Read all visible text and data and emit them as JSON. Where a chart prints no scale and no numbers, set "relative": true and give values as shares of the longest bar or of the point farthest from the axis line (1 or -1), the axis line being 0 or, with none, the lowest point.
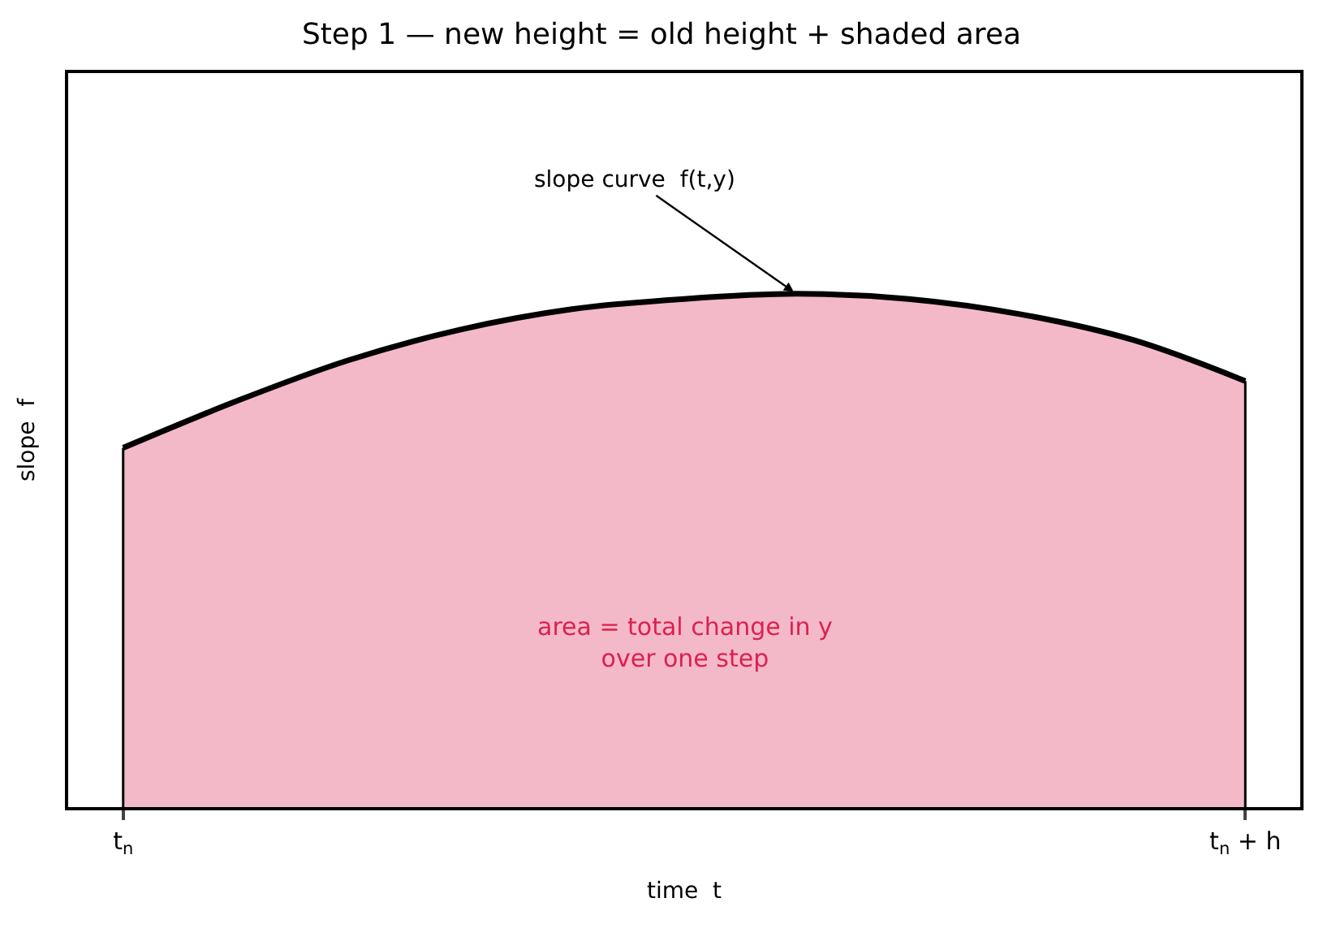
{
  "chart_data": {
    "type": "area",
    "title": "Step 1 — new height = old height + shaded area",
    "xlabel": "time  t",
    "ylabel": "slope  f",
    "relative": true,
    "categories": [
      "t$_{n}$",
      null,
      null,
      null,
      null,
      null,
      null,
      null,
      null,
      null,
      "t$_{n}$ + h"
    ],
    "series": [
      {
        "color": "#f4b9c8",
        "values": [
          0.7,
          0.79,
          0.87,
          0.93,
          0.97,
          0.99,
          1.0,
          0.99,
          0.96,
          0.91,
          0.83
        ]
      }
    ],
    "legend": false,
    "annotations": [
      "slope curve  f(t,y)",
      "area = total change in y\nover one step"
    ]
  }
}
